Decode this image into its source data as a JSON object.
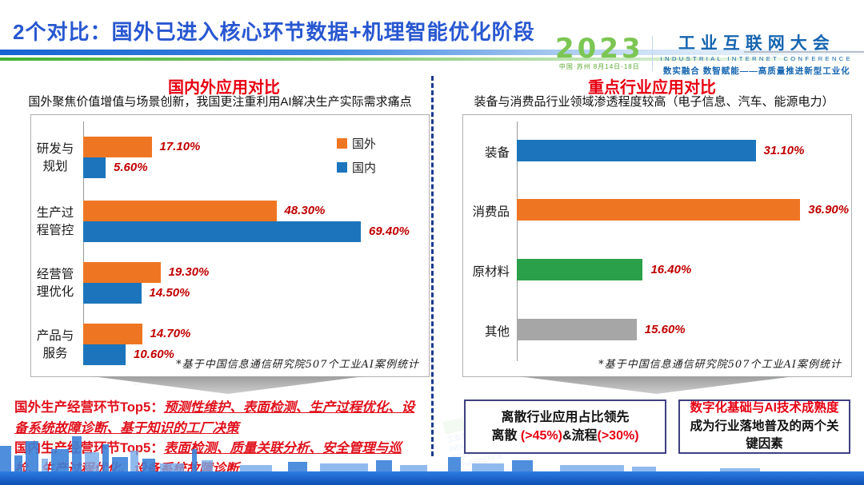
{
  "header": {
    "title": "2个对比：国外已进入核心环节数据+机理智能优化阶段",
    "logo": {
      "year": "2023",
      "venue": "中国·苏州  8月14日-18日",
      "name_cn": "工业互联网大会",
      "name_en": "INDUSTRIAL INTERNET CONFERENCE",
      "slogan": "数实融合  数智赋能——高质量推进新型工业化"
    }
  },
  "left_section": {
    "heading": "国内外应用对比",
    "subtitle": "国外聚焦价值增值与场景创新，我国更注重利用AI解决生产实际需求痛点",
    "footnote": "*基于中国信息通信研究院507个工业AI案例统计"
  },
  "right_section": {
    "heading": "重点行业应用对比",
    "subtitle": "装备与消费品行业领域渗透程度较高（电子信息、汽车、能源电力）",
    "footnote": "*基于中国信息通信研究院507个工业AI案例统计"
  },
  "chart_data": [
    {
      "type": "bar",
      "orientation": "horizontal",
      "title": "国内外应用对比",
      "categories": [
        "研发与规划",
        "生产过程管控",
        "经营管理优化",
        "产品与服务"
      ],
      "categories_wrapped": [
        [
          "研发与",
          "规划"
        ],
        [
          "生产过",
          "程管控"
        ],
        [
          "经营管",
          "理优化"
        ],
        [
          "产品与",
          "服务"
        ]
      ],
      "series": [
        {
          "name": "国外",
          "color": "#ee7623",
          "values": [
            17.1,
            48.3,
            19.3,
            14.7
          ]
        },
        {
          "name": "国内",
          "color": "#1c75bc",
          "values": [
            5.6,
            69.4,
            14.5,
            10.6
          ]
        }
      ],
      "value_suffix": "%",
      "xlim": [
        0,
        75
      ],
      "grid": false,
      "legend_position": "top-right",
      "value_label_color": "#c00000"
    },
    {
      "type": "bar",
      "orientation": "horizontal",
      "title": "重点行业应用对比",
      "categories": [
        "装备",
        "消费品",
        "原材料",
        "其他"
      ],
      "values": [
        31.1,
        36.9,
        16.4,
        15.6
      ],
      "bar_colors": [
        "#1c75bc",
        "#ee7623",
        "#2ba04a",
        "#a6a6a6"
      ],
      "value_suffix": "%",
      "xlim": [
        0,
        40
      ],
      "grid": false,
      "value_label_color": "#c00000"
    }
  ],
  "bottom_left": {
    "line1_label": "国外生产经营环节Top5：",
    "line1_items": "预测性维护、表面检测、生产过程优化、设备系统故障诊断、基于知识的工厂决策",
    "line2_label": "国内生产经营环节Top5：",
    "line2_items": "表面检测、质量关联分析、安全管理与巡检、生产过程优化、设备系统故障诊断"
  },
  "bottom_right": {
    "box1_line1": "离散行业应用占比领先",
    "box1_line2_parts": [
      {
        "text": "离散 ",
        "red": false
      },
      {
        "text": "(>45%)",
        "red": true
      },
      {
        "text": "&流程",
        "red": false
      },
      {
        "text": "(>30%)",
        "red": true
      }
    ],
    "box2_highlight": "数字化基础与AI技术成熟度",
    "box2_rest": "成为行业落地普及的两个关键因素"
  },
  "watermark": {
    "text_cn": "工业互联网大会",
    "text_en1": "INDUSTRIAL",
    "text_en2": "INTERNET",
    "text_en3": "CONFERENCE"
  },
  "colors": {
    "title_blue": "#2857d0",
    "heading_red": "#e60012",
    "value_red": "#c00000",
    "orange_bar": "#ee7623",
    "blue_bar": "#1c75bc",
    "green_bar": "#2ba04a",
    "gray_bar": "#a6a6a6",
    "box_border_navy": "#3f4080",
    "divider_navy": "#1b3b8f"
  }
}
